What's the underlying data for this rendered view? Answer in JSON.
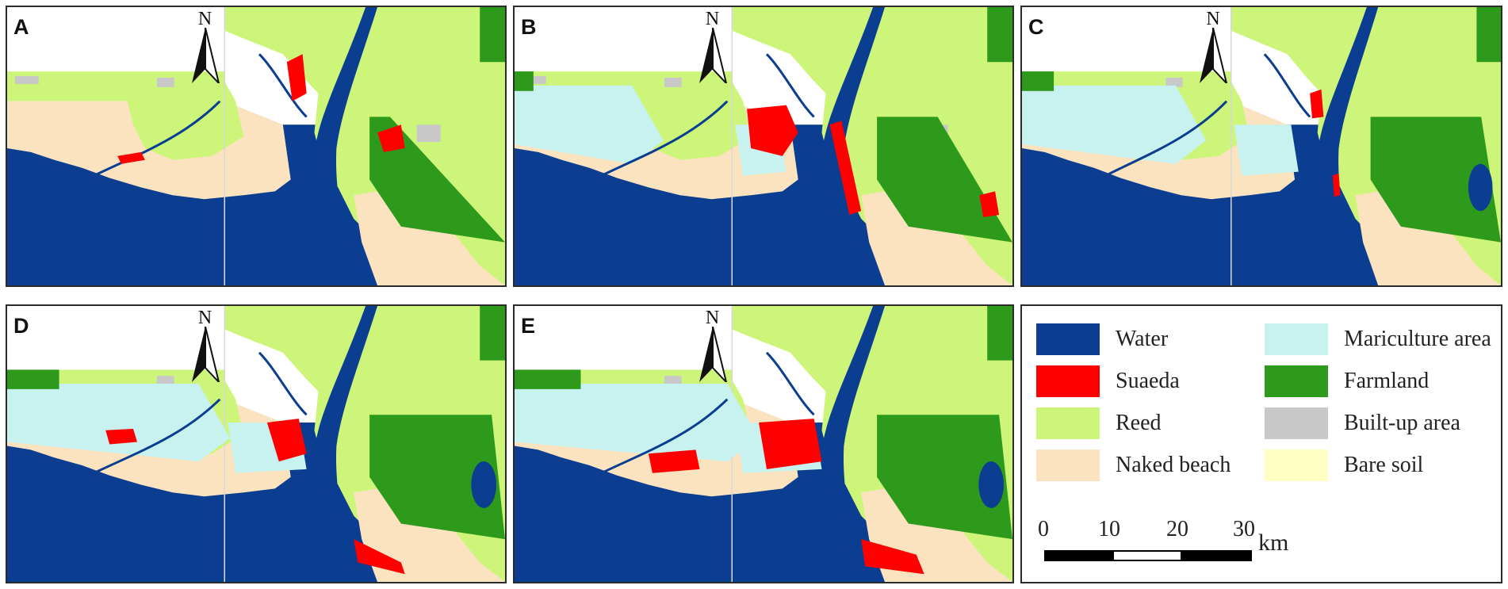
{
  "panels": [
    {
      "label": "A",
      "north": "N"
    },
    {
      "label": "B",
      "north": "N"
    },
    {
      "label": "C",
      "north": "N"
    },
    {
      "label": "D",
      "north": "N"
    },
    {
      "label": "E",
      "north": "N"
    }
  ],
  "legend": {
    "items": [
      {
        "label": "Water",
        "color": "#0b3d91"
      },
      {
        "label": "Mariculture area",
        "color": "#c7f2ef"
      },
      {
        "label": "Suaeda",
        "color": "#ff0000"
      },
      {
        "label": "Farmland",
        "color": "#2e9a1c"
      },
      {
        "label": "Reed",
        "color": "#cdf57a"
      },
      {
        "label": "Built-up area",
        "color": "#c8c8c8"
      },
      {
        "label": "Naked beach",
        "color": "#fbe3bf"
      },
      {
        "label": "Bare soil",
        "color": "#ffffc4"
      }
    ]
  },
  "scale_bar": {
    "ticks": [
      "0",
      "10",
      "20",
      "30"
    ],
    "unit": "km"
  }
}
